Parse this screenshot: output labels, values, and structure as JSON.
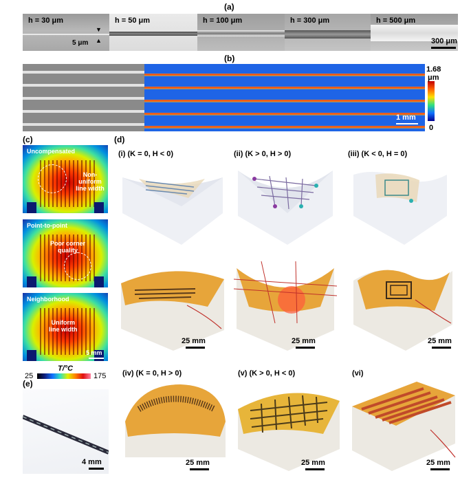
{
  "panels": {
    "a": "(a)",
    "b": "(b)",
    "c": "(c)",
    "d": "(d)",
    "e": "(e)"
  },
  "panel_a": {
    "segments": [
      "h = 30 μm",
      "h = 50 μm",
      "h = 100 μm",
      "h = 300 μm",
      "h = 500 μm"
    ],
    "line_width_label": "5 μm",
    "scalebar": "300 μm"
  },
  "panel_b": {
    "colorbar_max": "1.68",
    "colorbar_unit": "μm",
    "colorbar_min": "0",
    "scalebar": "1 mm"
  },
  "panel_c": {
    "images": [
      {
        "title": "Uncompensated",
        "note": "Non-uniform\nline width"
      },
      {
        "title": "Point-to-point",
        "note": "Poor corner\nquality"
      },
      {
        "title": "Neighborhood",
        "note": "Uniform\nline width"
      }
    ],
    "scalebar": "5 mm",
    "colorbar_min": "25",
    "colorbar_title": "T/°C",
    "colorbar_max": "175"
  },
  "panel_d": {
    "renders": [
      "(i) (K = 0, H < 0)",
      "(ii) (K > 0, H > 0)",
      "(iii) (K < 0, H = 0)"
    ],
    "photo_scalebar": "25 mm",
    "bottom": [
      "(iv) (K = 0, H > 0)",
      "(v) (K > 0, H < 0)",
      "(vi)"
    ]
  },
  "panel_e": {
    "scalebar": "4 mm"
  }
}
